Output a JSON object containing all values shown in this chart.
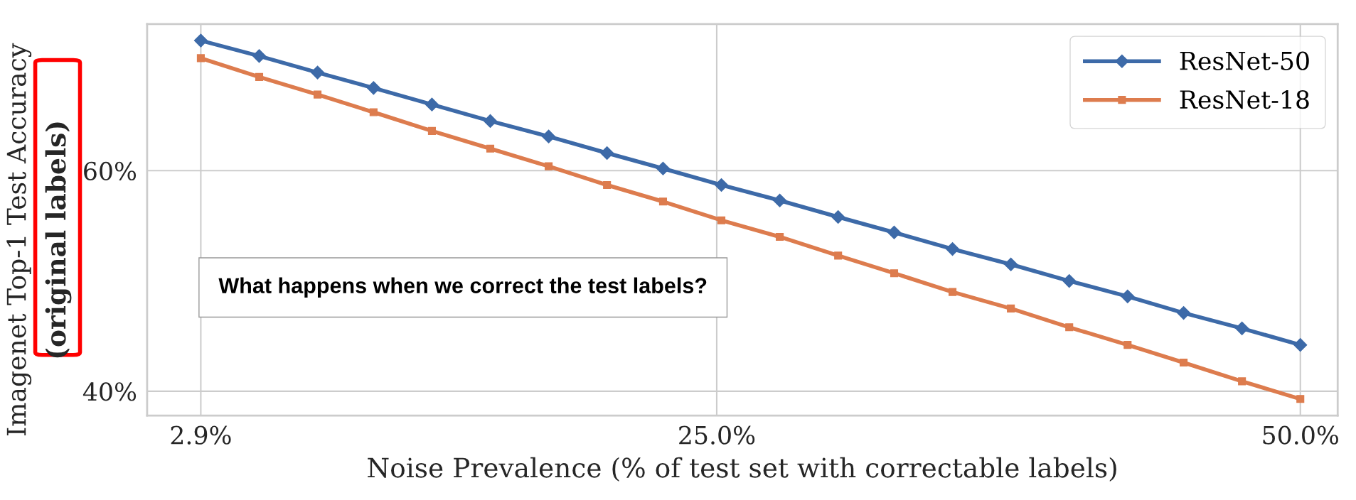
{
  "chart_data": {
    "type": "line",
    "xlabel": "Noise Prevalence (% of test set with correctable labels)",
    "ylabel": "Imagenet Top-1 Test Accuracy\n(original labels)",
    "annotations": [
      "What happens when we correct the test labels?"
    ],
    "x": [
      2.9,
      5.4,
      7.9,
      10.3,
      12.8,
      15.3,
      17.8,
      20.3,
      22.7,
      25.2,
      27.7,
      30.2,
      32.6,
      35.1,
      37.6,
      40.1,
      42.6,
      45.0,
      47.5,
      50.0
    ],
    "series": [
      {
        "name": "ResNet-50",
        "color": "#3d6aa8",
        "marker": "diamond",
        "values": [
          71.8,
          70.4,
          68.9,
          67.5,
          66.0,
          64.5,
          63.1,
          61.6,
          60.2,
          58.7,
          57.3,
          55.8,
          54.4,
          52.9,
          51.5,
          50.0,
          48.6,
          47.1,
          45.7,
          44.2
        ]
      },
      {
        "name": "ResNet-18",
        "color": "#dd7c4e",
        "marker": "square",
        "values": [
          70.2,
          68.5,
          66.9,
          65.3,
          63.6,
          62.0,
          60.4,
          58.7,
          57.2,
          55.5,
          54.0,
          52.3,
          50.7,
          49.0,
          47.5,
          45.8,
          44.2,
          42.6,
          40.9,
          39.3
        ]
      }
    ],
    "xlim": [
      0.6,
      51.6
    ],
    "ylim": [
      37.8,
      73.3
    ],
    "xticks": [
      {
        "value": 2.9,
        "label": "2.9%"
      },
      {
        "value": 25.0,
        "label": "25.0%"
      },
      {
        "value": 50.0,
        "label": "50.0%"
      }
    ],
    "yticks": [
      {
        "value": 40,
        "label": "40%"
      },
      {
        "value": 60,
        "label": "60%"
      }
    ],
    "grid": true,
    "legend": "top right",
    "line_style": "solid"
  }
}
